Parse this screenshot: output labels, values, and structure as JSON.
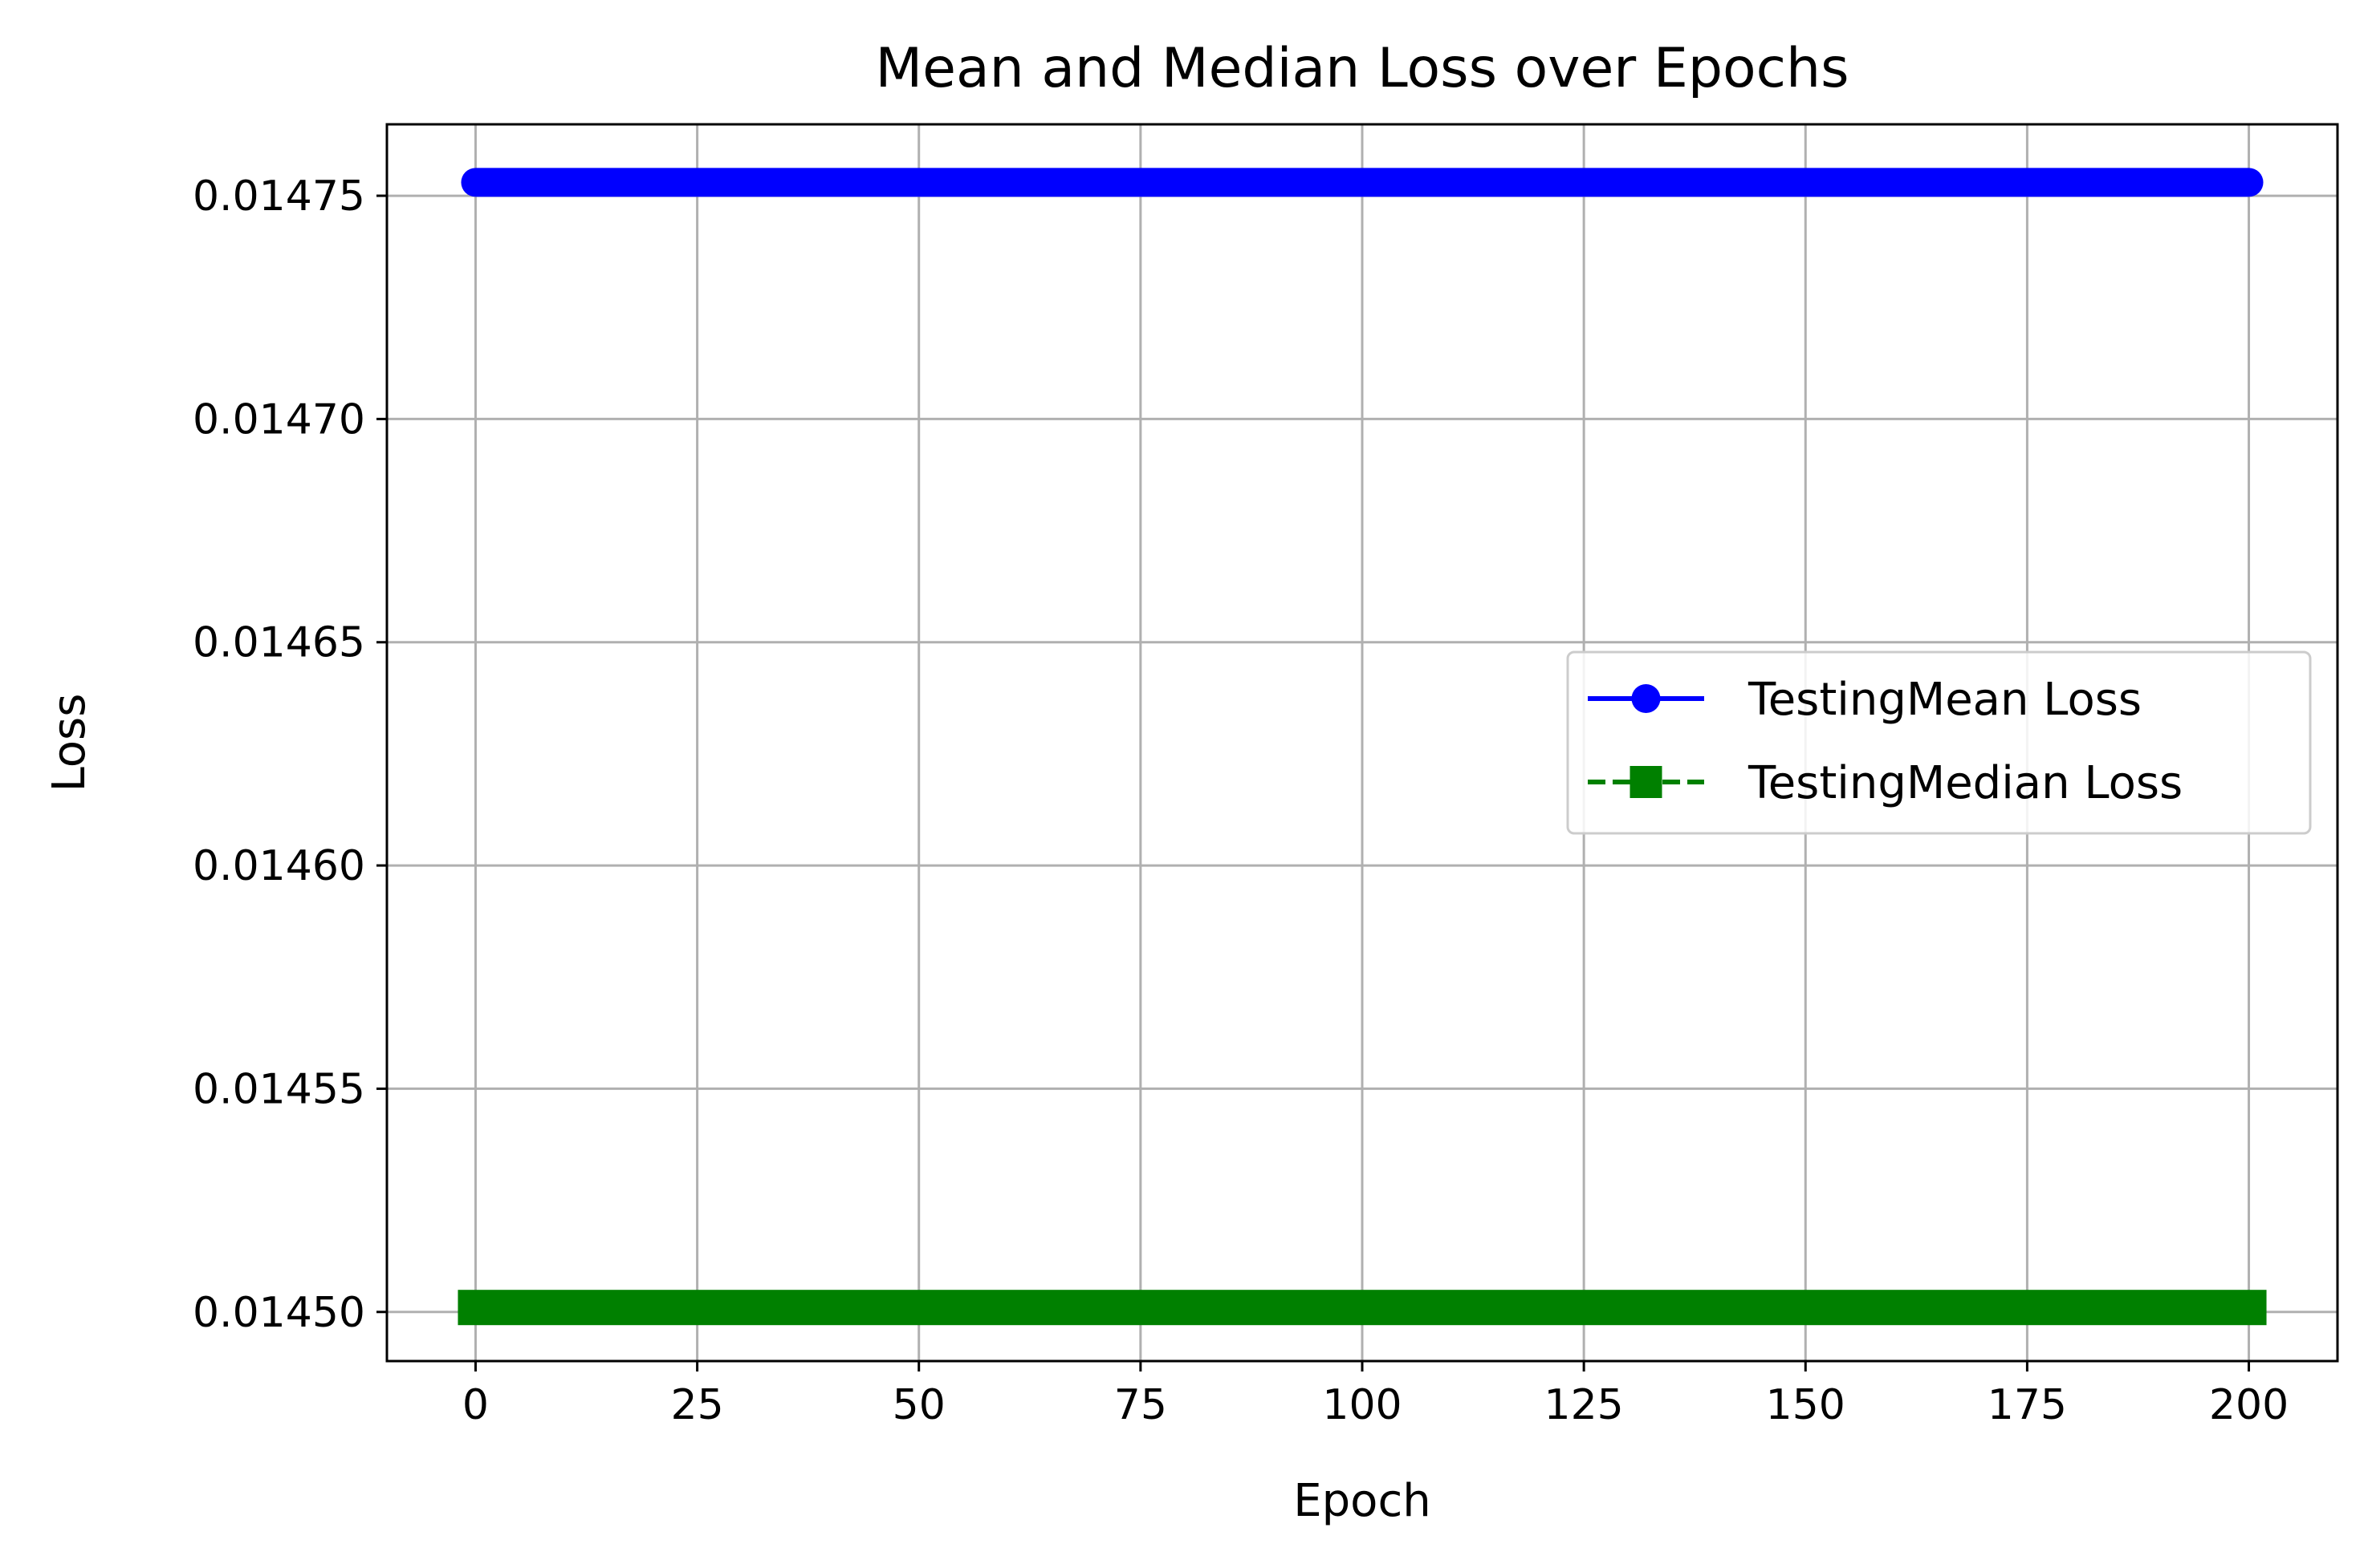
{
  "chart_data": {
    "type": "line",
    "title": "Mean and Median Loss over Epochs",
    "xlabel": "Epoch",
    "ylabel": "Loss",
    "xlim": [
      -10,
      210
    ],
    "ylim": [
      0.014489,
      0.014766
    ],
    "xticks": [
      0,
      25,
      50,
      75,
      100,
      125,
      150,
      175,
      200
    ],
    "xtick_labels": [
      "0",
      "25",
      "50",
      "75",
      "100",
      "125",
      "150",
      "175",
      "200"
    ],
    "yticks": [
      0.0145,
      0.01455,
      0.0146,
      0.01465,
      0.0147,
      0.01475
    ],
    "ytick_labels": [
      "0.01450",
      "0.01455",
      "0.01460",
      "0.01465",
      "0.01470",
      "0.01475"
    ],
    "grid": true,
    "legend_position": "center-right",
    "x_range": [
      0,
      200
    ],
    "series": [
      {
        "name": "TestingMean Loss",
        "constant_value": 0.014753,
        "color": "#0000ff",
        "marker": "circle",
        "linestyle": "solid"
      },
      {
        "name": "TestingMedian Loss",
        "constant_value": 0.014501,
        "color": "#008000",
        "marker": "square",
        "linestyle": "dashed"
      }
    ]
  }
}
